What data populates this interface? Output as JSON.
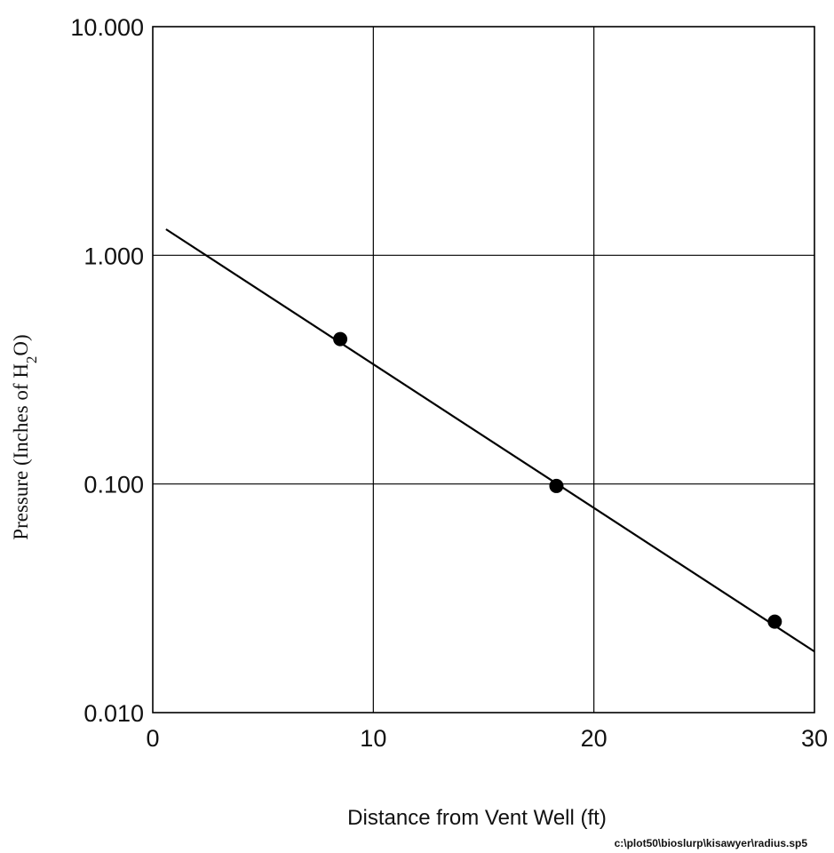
{
  "chart_data": {
    "type": "scatter",
    "xlabel": "Distance from Vent Well (ft)",
    "ylabel": {
      "prefix": "Pressure (Inches of H",
      "subscript": "2",
      "suffix": "O)"
    },
    "xlim": [
      0,
      30
    ],
    "ylim": [
      0.01,
      10
    ],
    "y_scale": "log",
    "grid": true,
    "x_ticks": [
      {
        "value": 0,
        "label": "0"
      },
      {
        "value": 10,
        "label": "10"
      },
      {
        "value": 20,
        "label": "20"
      },
      {
        "value": 30,
        "label": "30"
      }
    ],
    "y_ticks": [
      {
        "value": 0.01,
        "label": "0.010"
      },
      {
        "value": 0.1,
        "label": "0.100"
      },
      {
        "value": 1,
        "label": "1.000"
      },
      {
        "value": 10,
        "label": "10.000"
      }
    ],
    "points": [
      {
        "x": 8.5,
        "y": 0.43
      },
      {
        "x": 18.3,
        "y": 0.098
      },
      {
        "x": 28.2,
        "y": 0.025
      }
    ],
    "fit_line": [
      {
        "x": 0.6,
        "y": 1.3
      },
      {
        "x": 30,
        "y": 0.0185
      }
    ],
    "colors": {
      "line": "#000000",
      "points": "#000000",
      "grid": "#000000"
    }
  },
  "footer": "c:\\plot50\\bioslurp\\kisawyer\\radius.sp5"
}
